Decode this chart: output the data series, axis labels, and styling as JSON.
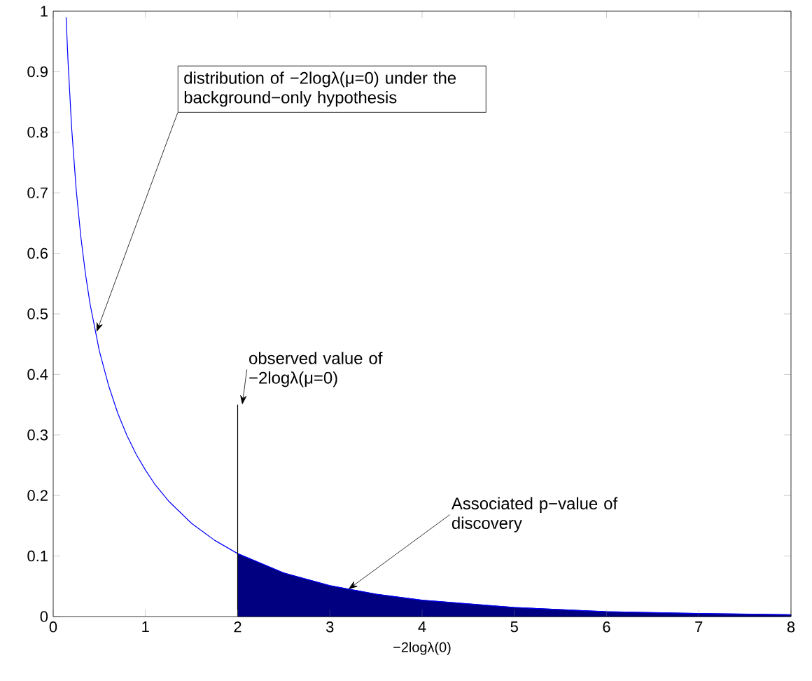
{
  "chart_data": {
    "type": "line",
    "xlabel": "−2logλ(0)",
    "xlim": [
      0,
      8
    ],
    "ylim": [
      0,
      1
    ],
    "xticks": [
      0,
      1,
      2,
      3,
      4,
      5,
      6,
      7,
      8
    ],
    "yticks": [
      0,
      0.1,
      0.2,
      0.3,
      0.4,
      0.5,
      0.6,
      0.7,
      0.8,
      0.9,
      1
    ],
    "series": [
      {
        "type": "area",
        "color": "#000080",
        "x": [
          2,
          2.5,
          3,
          3.5,
          4,
          5,
          6,
          7,
          8
        ],
        "values": [
          0.104,
          0.072,
          0.051,
          0.037,
          0.027,
          0.015,
          0.008,
          0.005,
          0.003
        ]
      },
      {
        "color": "#0000ff",
        "x": [
          0.14,
          0.16,
          0.2,
          0.25,
          0.3,
          0.35,
          0.4,
          0.5,
          0.6,
          0.7,
          0.8,
          0.9,
          1.0,
          1.1,
          1.25,
          1.5,
          1.75,
          2,
          2.5,
          3,
          3.5,
          4,
          5,
          6,
          7,
          8
        ],
        "values": [
          0.99,
          0.92,
          0.807,
          0.704,
          0.627,
          0.566,
          0.516,
          0.439,
          0.382,
          0.336,
          0.299,
          0.268,
          0.242,
          0.219,
          0.191,
          0.154,
          0.126,
          0.104,
          0.072,
          0.051,
          0.037,
          0.027,
          0.015,
          0.008,
          0.005,
          0.003
        ]
      },
      {
        "color": "#000000",
        "x": [
          2,
          2
        ],
        "values": [
          0,
          0.35
        ]
      }
    ],
    "annotations": [
      {
        "text": "distribution of −2logλ(μ=0) under the background−only hypothesis",
        "x": 0.47,
        "y": 0.47
      },
      {
        "text": "observed value of −2logλ(μ=0)",
        "x": 2.05,
        "y": 0.35
      },
      {
        "text": "Associated p−value of discovery",
        "x": 3.2,
        "y": 0.045
      }
    ]
  }
}
